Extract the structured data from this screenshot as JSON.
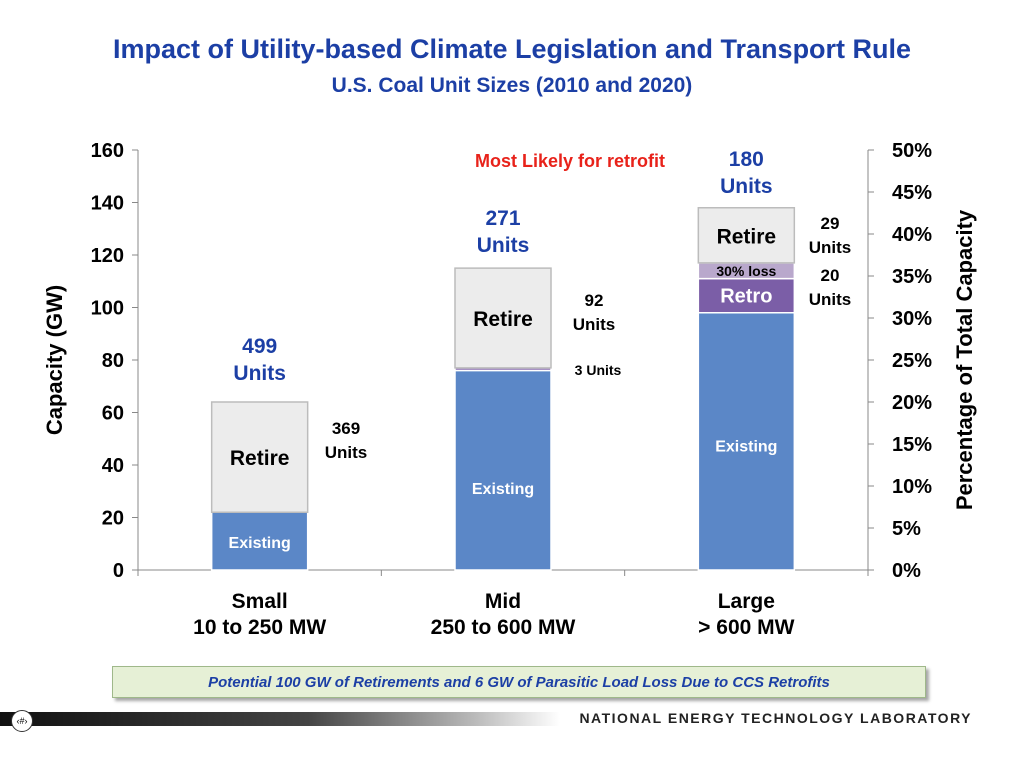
{
  "header": {
    "title": "Impact of Utility-based Climate Legislation and Transport Rule",
    "subtitle": "U.S. Coal Unit Sizes (2010 and 2020)"
  },
  "chart_data": {
    "type": "bar",
    "stacked": true,
    "categories": [
      "Small\n10 to 250 MW",
      "Mid\n250 to 600 MW",
      "Large\n> 600 MW"
    ],
    "series": [
      {
        "name": "Existing",
        "values": [
          22,
          76,
          98
        ],
        "color": "#5b87c7"
      },
      {
        "name": "3 Units",
        "values": [
          0,
          1,
          0
        ],
        "color": "#8a6db0"
      },
      {
        "name": "Retro",
        "values": [
          0,
          0,
          13
        ],
        "color": "#7b5ea7"
      },
      {
        "name": "30% loss",
        "values": [
          0,
          0,
          6
        ],
        "color": "#b9a8cc"
      },
      {
        "name": "Retire",
        "values": [
          42,
          38,
          21
        ],
        "color": "#ececec"
      }
    ],
    "ylabel": "Capacity (GW)",
    "ylabel_right": "Percentage of Total Capacity",
    "ylim": [
      0,
      160
    ],
    "yticks": [
      "0",
      "20",
      "40",
      "60",
      "80",
      "100",
      "120",
      "140",
      "160"
    ],
    "ylim_right": [
      0,
      50
    ],
    "yticks_right": [
      "0%",
      "5%",
      "10%",
      "15%",
      "20%",
      "25%",
      "30%",
      "35%",
      "40%",
      "45%",
      "50%"
    ],
    "grid": false,
    "bar_totals": [
      "499\nUnits",
      "271\nUnits",
      "180\nUnits"
    ],
    "annotations": [
      "369\nUnits",
      "92\nUnits",
      "3 Units",
      "29\nUnits",
      "20\nUnits"
    ],
    "arrow_label": "Most Likely for retrofit",
    "arrow_color": "#e8221a"
  },
  "callout": {
    "text": "Potential 100 GW of Retirements and 6 GW of Parasitic Load Loss Due to CCS Retrofits"
  },
  "footer": {
    "organization": "NATIONAL ENERGY TECHNOLOGY LABORATORY",
    "page_marker": "‹#›"
  },
  "colors": {
    "title": "#1c3fa5",
    "existing": "#5b87c7",
    "retro": "#7b5ea7",
    "retire": "#ececec",
    "arrow": "#e8221a"
  }
}
